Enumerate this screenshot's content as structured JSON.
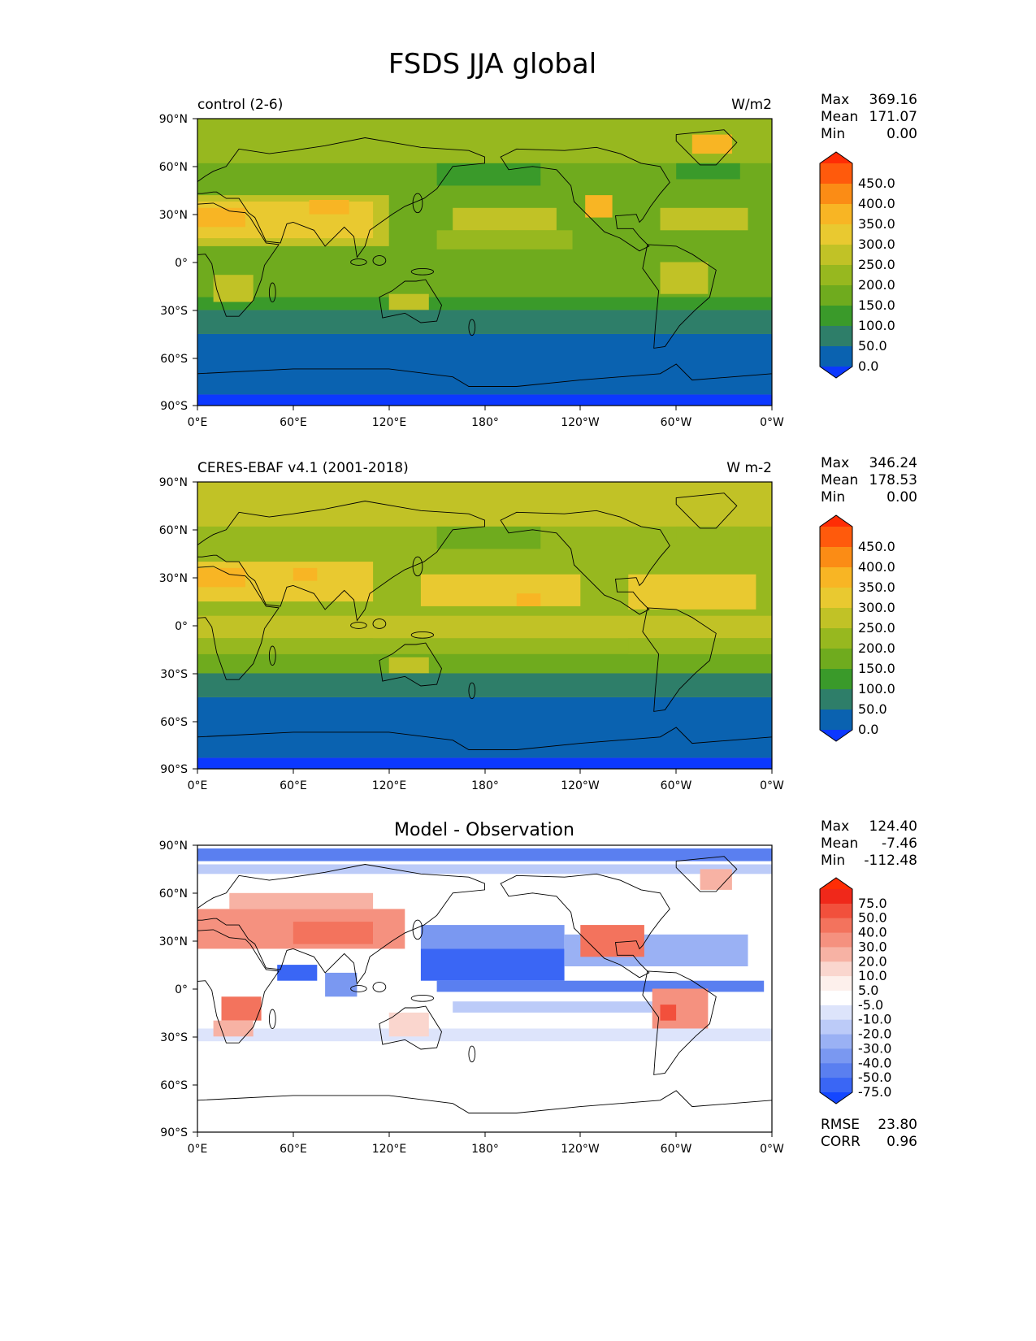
{
  "title": "FSDS JJA global",
  "panels": [
    {
      "left_title": "control (2-6)",
      "right_title": "W/m2",
      "center_title": "",
      "stats": [
        {
          "label": "Max",
          "value": "369.16"
        },
        {
          "label": "Mean",
          "value": "171.07"
        },
        {
          "label": "Min",
          "value": "0.00"
        }
      ],
      "colorbar": {
        "labels": [
          "450.0",
          "400.0",
          "350.0",
          "300.0",
          "250.0",
          "200.0",
          "150.0",
          "100.0",
          "50.0",
          "0.0"
        ],
        "colors": [
          "#ff2d05",
          "#ff5a0c",
          "#fb8c15",
          "#f8b524",
          "#e9c930",
          "#c1c226",
          "#97b81f",
          "#6fab1e",
          "#3a9a2a",
          "#2e7e69",
          "#0a62b0",
          "#0c38ff"
        ]
      },
      "field": "control",
      "metrics": []
    },
    {
      "left_title": "CERES-EBAF v4.1 (2001-2018)",
      "right_title": "W m-2",
      "center_title": "",
      "stats": [
        {
          "label": "Max",
          "value": "346.24"
        },
        {
          "label": "Mean",
          "value": "178.53"
        },
        {
          "label": "Min",
          "value": "0.00"
        }
      ],
      "colorbar": {
        "labels": [
          "450.0",
          "400.0",
          "350.0",
          "300.0",
          "250.0",
          "200.0",
          "150.0",
          "100.0",
          "50.0",
          "0.0"
        ],
        "colors": [
          "#ff2d05",
          "#ff5a0c",
          "#fb8c15",
          "#f8b524",
          "#e9c930",
          "#c1c226",
          "#97b81f",
          "#6fab1e",
          "#3a9a2a",
          "#2e7e69",
          "#0a62b0",
          "#0c38ff"
        ]
      },
      "field": "obs",
      "metrics": []
    },
    {
      "left_title": "",
      "right_title": "",
      "center_title": "Model - Observation",
      "stats": [
        {
          "label": "Max",
          "value": "124.40"
        },
        {
          "label": "Mean",
          "value": "-7.46"
        },
        {
          "label": "Min",
          "value": "-112.48"
        }
      ],
      "colorbar": {
        "labels": [
          "75.0",
          "50.0",
          "40.0",
          "30.0",
          "20.0",
          "10.0",
          "5.0",
          "-5.0",
          "-10.0",
          "-20.0",
          "-30.0",
          "-40.0",
          "-50.0",
          "-75.0"
        ],
        "colors": [
          "#ff2d05",
          "#f0281a",
          "#f2503c",
          "#f3735d",
          "#f5917f",
          "#f7b2a4",
          "#fad6ce",
          "#fdf0ec",
          "#ffffff",
          "#dde4fb",
          "#bccbf8",
          "#9ab1f4",
          "#7a98f1",
          "#5a7ff0",
          "#3a66f5",
          "#1447ff"
        ]
      },
      "field": "diff",
      "metrics": [
        {
          "label": "RMSE",
          "value": "23.80"
        },
        {
          "label": "CORR",
          "value": "0.96"
        }
      ]
    }
  ],
  "lat_ticks": [
    "90°N",
    "60°N",
    "30°N",
    "0°",
    "30°S",
    "60°S",
    "90°S"
  ],
  "lon_ticks": [
    "0°E",
    "60°E",
    "120°E",
    "180°",
    "120°W",
    "60°W",
    "0°W"
  ]
}
